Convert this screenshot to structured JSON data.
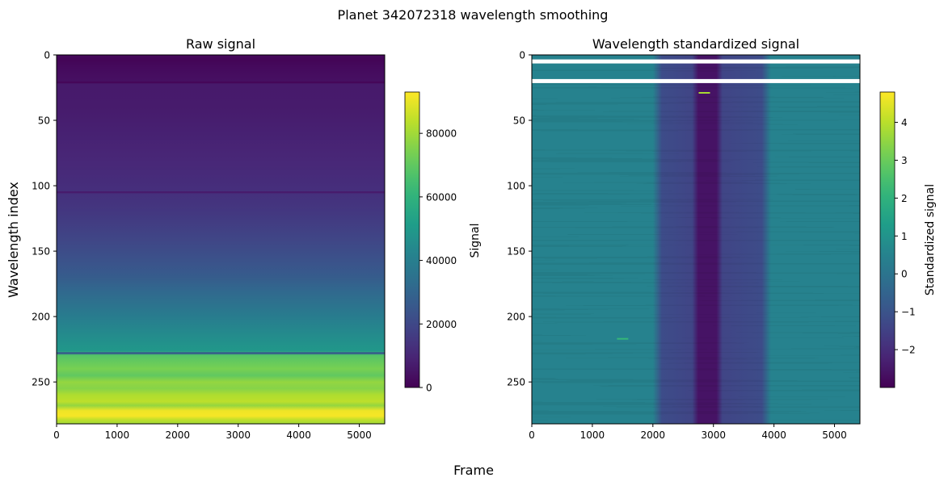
{
  "figure": {
    "suptitle": "Planet 342072318 wavelength smoothing",
    "shared_xlabel": "Frame",
    "shared_ylabel": "Wavelength index"
  },
  "chart_data": [
    {
      "type": "heatmap",
      "title": "Raw signal",
      "xlabel": "Frame",
      "ylabel": "Wavelength index",
      "xlim": [
        0,
        5420
      ],
      "ylim": [
        282,
        0
      ],
      "xticks": [
        "0",
        "1000",
        "2000",
        "3000",
        "4000",
        "5000"
      ],
      "yticks": [
        "0",
        "50",
        "100",
        "150",
        "200",
        "250"
      ],
      "colormap": "viridis",
      "colorbar": {
        "label": "Signal",
        "range": [
          0,
          93000
        ],
        "ticks": [
          "0",
          "20000",
          "40000",
          "60000",
          "80000"
        ]
      },
      "profile": [
        {
          "row": 0,
          "value": 2000
        },
        {
          "row": 4,
          "value": 1000
        },
        {
          "row": 10,
          "value": 2500
        },
        {
          "row": 20,
          "value": 4000
        },
        {
          "row": 22,
          "value": 6500
        },
        {
          "row": 40,
          "value": 7000
        },
        {
          "row": 60,
          "value": 8500
        },
        {
          "row": 80,
          "value": 10000
        },
        {
          "row": 100,
          "value": 12000
        },
        {
          "row": 120,
          "value": 15000
        },
        {
          "row": 140,
          "value": 19000
        },
        {
          "row": 160,
          "value": 24000
        },
        {
          "row": 170,
          "value": 27000
        },
        {
          "row": 180,
          "value": 31000
        },
        {
          "row": 190,
          "value": 35000
        },
        {
          "row": 200,
          "value": 39000
        },
        {
          "row": 210,
          "value": 43000
        },
        {
          "row": 220,
          "value": 47000
        },
        {
          "row": 226,
          "value": 49000
        },
        {
          "row": 230,
          "value": 68000
        },
        {
          "row": 235,
          "value": 71000
        },
        {
          "row": 240,
          "value": 74000
        },
        {
          "row": 245,
          "value": 70000
        },
        {
          "row": 250,
          "value": 78000
        },
        {
          "row": 255,
          "value": 76000
        },
        {
          "row": 260,
          "value": 82000
        },
        {
          "row": 265,
          "value": 84000
        },
        {
          "row": 268,
          "value": 78000
        },
        {
          "row": 272,
          "value": 91000
        },
        {
          "row": 276,
          "value": 92000
        },
        {
          "row": 279,
          "value": 84000
        },
        {
          "row": 282,
          "value": 80000
        }
      ],
      "dark_rows": [
        {
          "row": 21,
          "value": 1500
        },
        {
          "row": 105,
          "value": 7000
        },
        {
          "row": 228,
          "value": 26000
        }
      ]
    },
    {
      "type": "heatmap",
      "title": "Wavelength standardized signal",
      "xlabel": "Frame",
      "ylabel": "",
      "xlim": [
        0,
        5420
      ],
      "ylim": [
        282,
        0
      ],
      "xticks": [
        "0",
        "1000",
        "2000",
        "3000",
        "4000",
        "5000"
      ],
      "yticks": [
        "0",
        "50",
        "100",
        "150",
        "200",
        "250"
      ],
      "colormap": "viridis",
      "colorbar": {
        "label": "Standardized signal",
        "range": [
          -3.0,
          4.8
        ],
        "ticks": [
          "4",
          "3",
          "2",
          "1",
          "0",
          "−1",
          "−2"
        ]
      },
      "frame_profile": [
        {
          "frame": 0,
          "value": 0.45
        },
        {
          "frame": 2000,
          "value": 0.45
        },
        {
          "frame": 2150,
          "value": -1.2
        },
        {
          "frame": 2650,
          "value": -1.4
        },
        {
          "frame": 2750,
          "value": -2.6
        },
        {
          "frame": 3050,
          "value": -2.6
        },
        {
          "frame": 3150,
          "value": -1.4
        },
        {
          "frame": 3800,
          "value": -1.2
        },
        {
          "frame": 3950,
          "value": 0.45
        },
        {
          "frame": 5420,
          "value": 0.45
        }
      ],
      "nan_rows": [
        5,
        20
      ],
      "hot_pixels": [
        {
          "frame": 2850,
          "row": 29,
          "value": 3.8
        },
        {
          "frame": 1500,
          "row": 217,
          "value": 2.2
        }
      ]
    }
  ]
}
